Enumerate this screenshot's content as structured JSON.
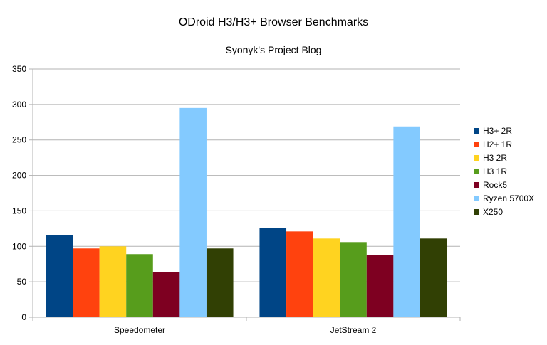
{
  "chart_data": {
    "type": "bar",
    "title": "ODroid H3/H3+ Browser Benchmarks",
    "subtitle": "Syonyk's Project Blog",
    "xlabel": "",
    "ylabel": "",
    "ylim": [
      0,
      350
    ],
    "yticks": [
      0,
      50,
      100,
      150,
      200,
      250,
      300,
      350
    ],
    "grid": true,
    "legend_position": "right",
    "categories": [
      "Speedometer",
      "JetStream 2"
    ],
    "series": [
      {
        "name": "H3+ 2R",
        "color": "#004586",
        "values": [
          116,
          126
        ]
      },
      {
        "name": "H2+ 1R",
        "color": "#ff420e",
        "values": [
          97,
          121
        ]
      },
      {
        "name": "H3 2R",
        "color": "#ffd320",
        "values": [
          100,
          111
        ]
      },
      {
        "name": "H3 1R",
        "color": "#579d1c",
        "values": [
          89,
          106
        ]
      },
      {
        "name": "Rock5",
        "color": "#7e0021",
        "values": [
          64,
          88
        ]
      },
      {
        "name": "Ryzen 5700X",
        "color": "#83caff",
        "values": [
          295,
          269
        ]
      },
      {
        "name": "X250",
        "color": "#314004",
        "values": [
          97,
          111
        ]
      }
    ]
  }
}
